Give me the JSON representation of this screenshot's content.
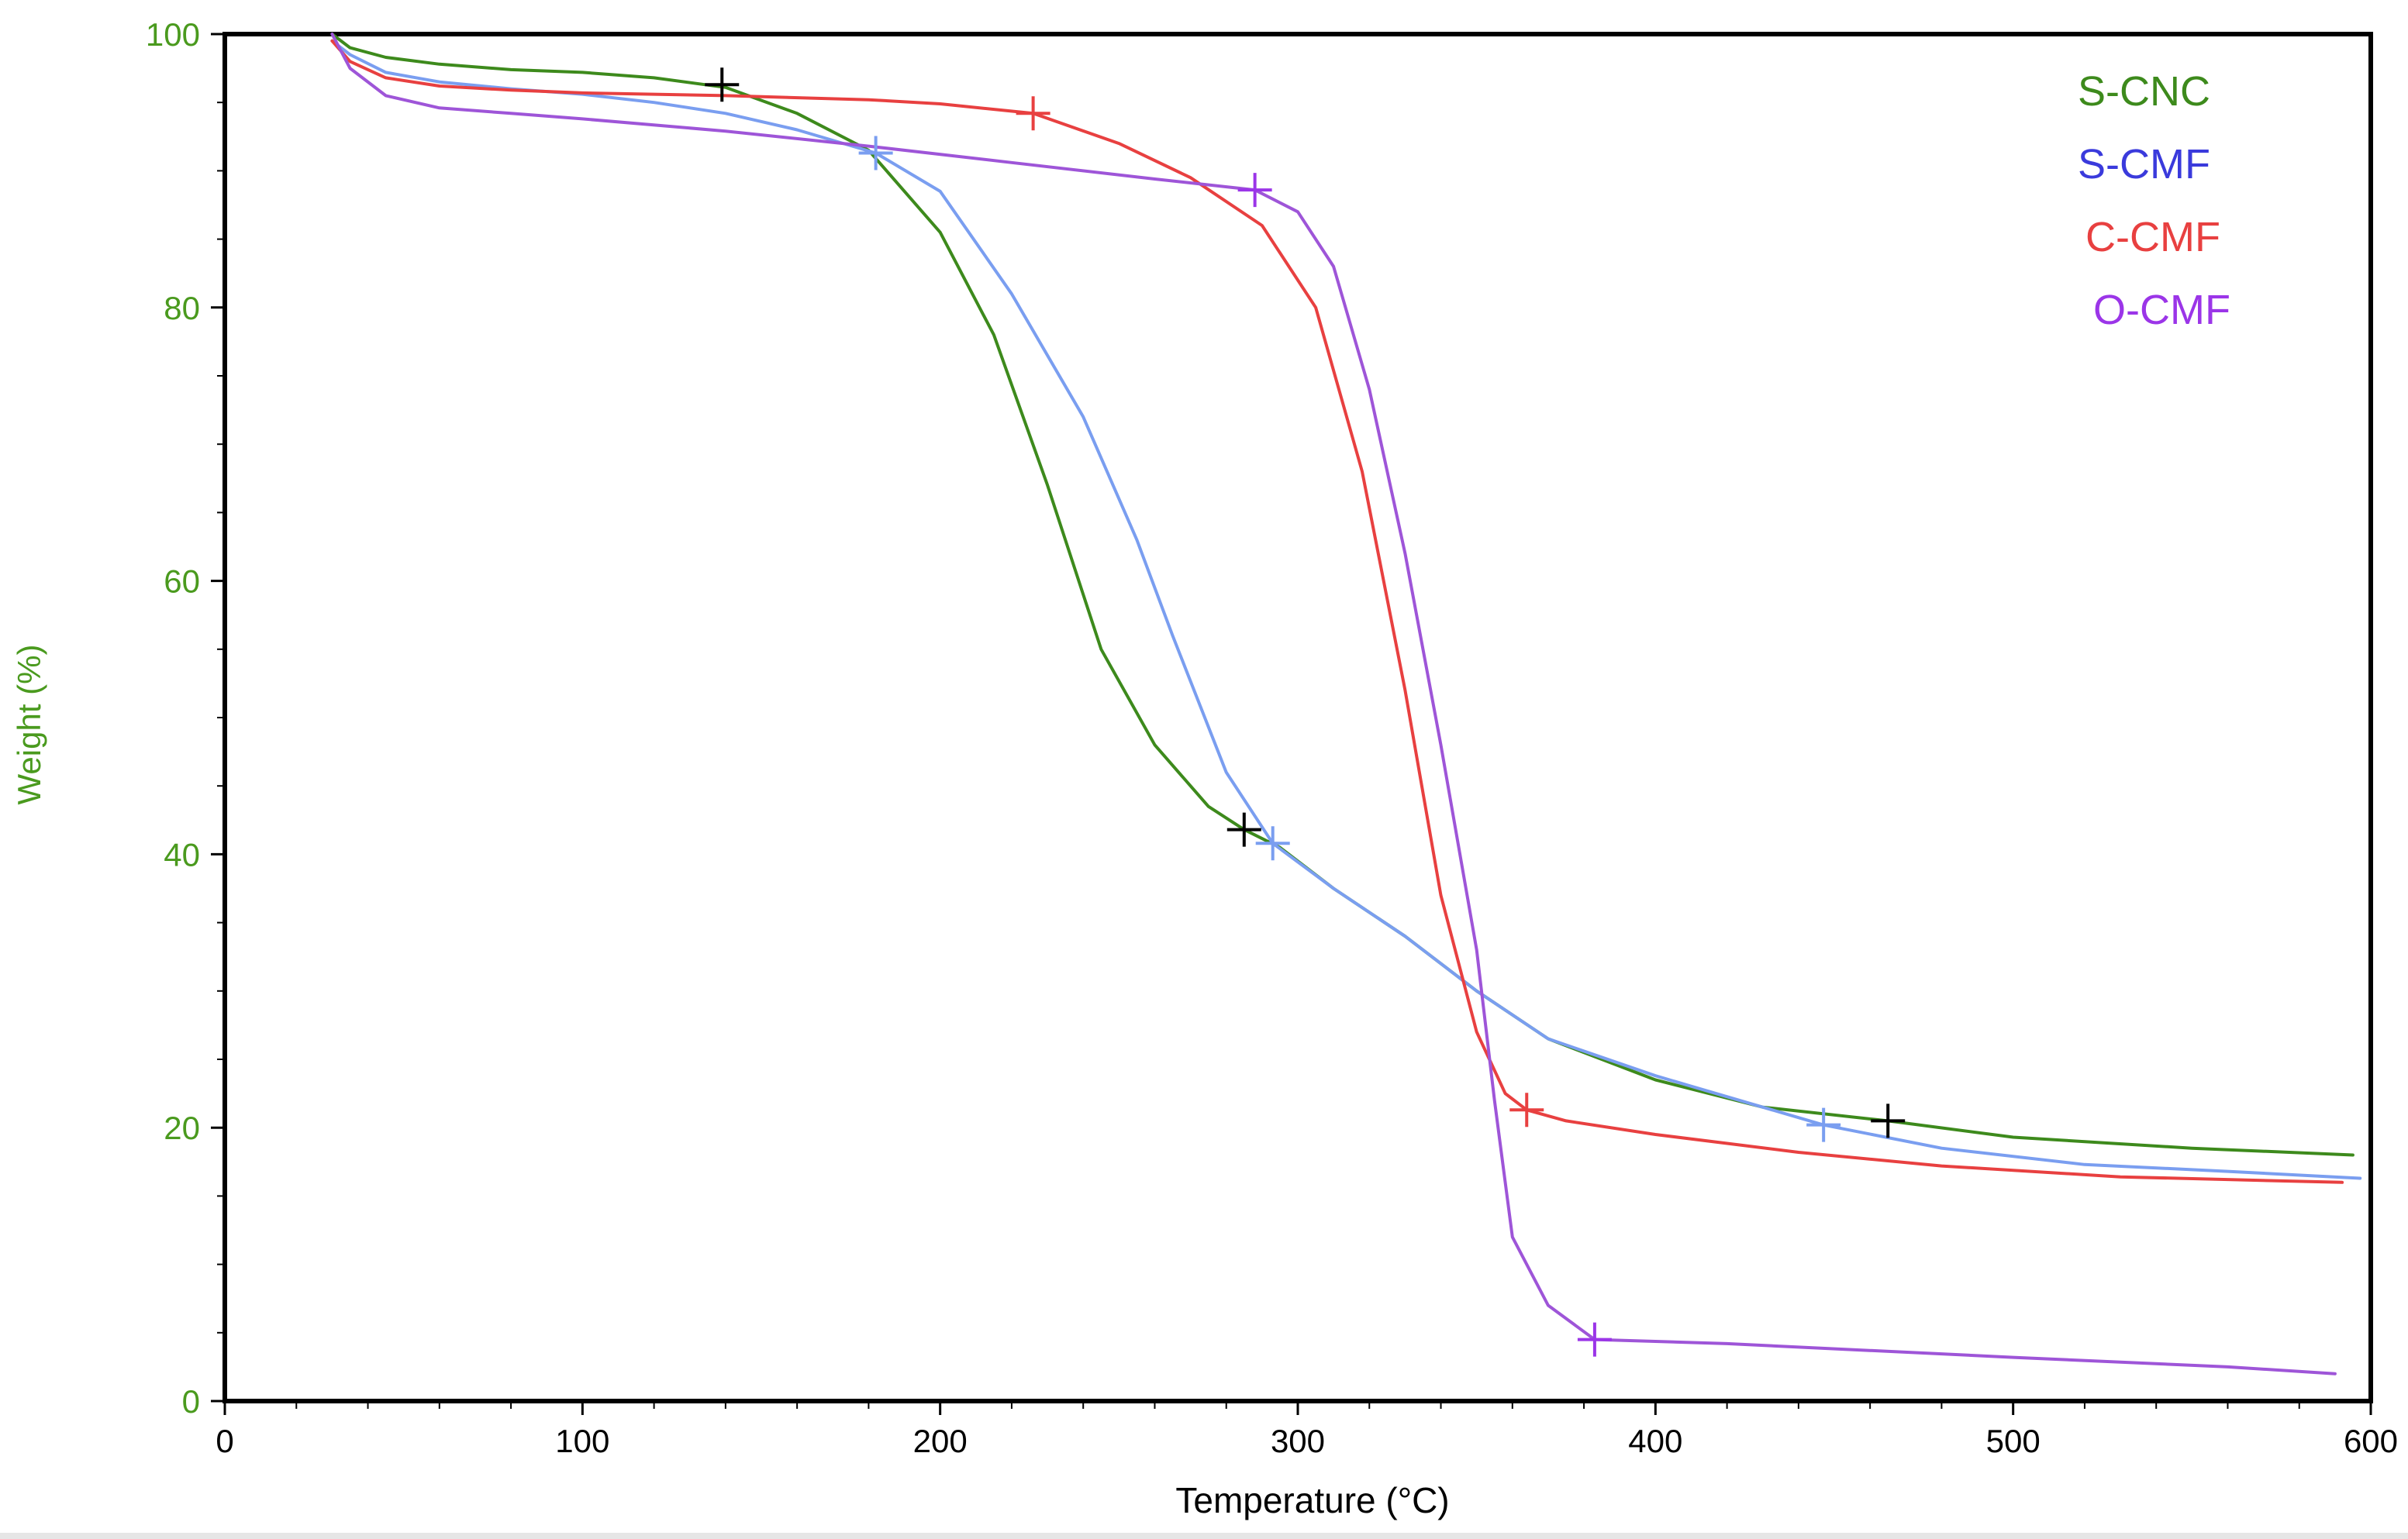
{
  "chart_data": {
    "type": "line",
    "title": "",
    "xlabel": "Temperature (°C)",
    "ylabel": "Weight (%)",
    "xlim": [
      0,
      600
    ],
    "ylim": [
      0,
      100
    ],
    "x_ticks": [
      0,
      100,
      200,
      300,
      400,
      500,
      600
    ],
    "x_tick_labels": [
      "0",
      "100",
      "200",
      "300",
      "400",
      "500",
      "600"
    ],
    "y_ticks": [
      0,
      20,
      40,
      60,
      80,
      100
    ],
    "y_tick_labels": [
      "0",
      "20",
      "40",
      "60",
      "80",
      "100"
    ],
    "grid": false,
    "legend_position": "top-right",
    "colors": {
      "axis": "#000000",
      "y_axis_text": "#4a9a1e",
      "x_axis_text": "#000000"
    },
    "series": [
      {
        "name": "S-CNC",
        "color": "#3d8a1c",
        "legend_color": "#3d8a1c",
        "marker_color": "#000000",
        "points": [
          [
            30,
            100
          ],
          [
            35,
            99
          ],
          [
            45,
            98.3
          ],
          [
            60,
            97.8
          ],
          [
            80,
            97.4
          ],
          [
            100,
            97.2
          ],
          [
            120,
            96.8
          ],
          [
            140,
            96.1
          ],
          [
            160,
            94.2
          ],
          [
            180,
            91.5
          ],
          [
            200,
            85.5
          ],
          [
            215,
            78
          ],
          [
            230,
            67
          ],
          [
            245,
            55
          ],
          [
            260,
            48
          ],
          [
            275,
            43.5
          ],
          [
            285,
            41.8
          ],
          [
            295,
            40.5
          ],
          [
            310,
            37.5
          ],
          [
            330,
            34
          ],
          [
            350,
            30
          ],
          [
            370,
            26.5
          ],
          [
            400,
            23.5
          ],
          [
            430,
            21.5
          ],
          [
            465,
            20.5
          ],
          [
            500,
            19.3
          ],
          [
            550,
            18.5
          ],
          [
            595,
            18
          ]
        ],
        "markers": [
          [
            139,
            96.3
          ],
          [
            285,
            41.8
          ],
          [
            465,
            20.5
          ]
        ]
      },
      {
        "name": "S-CMF",
        "color": "#7a9ef0",
        "legend_color": "#3a3adc",
        "marker_color": "#7a9ef0",
        "points": [
          [
            30,
            99.5
          ],
          [
            35,
            98.5
          ],
          [
            45,
            97.2
          ],
          [
            60,
            96.5
          ],
          [
            80,
            96
          ],
          [
            100,
            95.6
          ],
          [
            120,
            95
          ],
          [
            140,
            94.2
          ],
          [
            160,
            93
          ],
          [
            182,
            91.3
          ],
          [
            200,
            88.5
          ],
          [
            220,
            81
          ],
          [
            240,
            72
          ],
          [
            255,
            63
          ],
          [
            265,
            56
          ],
          [
            280,
            46
          ],
          [
            293,
            40.8
          ],
          [
            310,
            37.5
          ],
          [
            330,
            34
          ],
          [
            350,
            30
          ],
          [
            370,
            26.5
          ],
          [
            400,
            23.8
          ],
          [
            447,
            20.2
          ],
          [
            480,
            18.5
          ],
          [
            520,
            17.3
          ],
          [
            560,
            16.8
          ],
          [
            597,
            16.3
          ]
        ],
        "markers": [
          [
            182,
            91.3
          ],
          [
            293,
            40.8
          ],
          [
            447,
            20.2
          ]
        ]
      },
      {
        "name": "C-CMF",
        "color": "#e84040",
        "legend_color": "#e84040",
        "marker_color": "#e84040",
        "points": [
          [
            30,
            99.5
          ],
          [
            35,
            98
          ],
          [
            45,
            96.8
          ],
          [
            60,
            96.2
          ],
          [
            80,
            95.9
          ],
          [
            100,
            95.7
          ],
          [
            140,
            95.5
          ],
          [
            180,
            95.2
          ],
          [
            200,
            94.9
          ],
          [
            226,
            94.2
          ],
          [
            250,
            92
          ],
          [
            270,
            89.5
          ],
          [
            290,
            86
          ],
          [
            305,
            80
          ],
          [
            318,
            68
          ],
          [
            330,
            52
          ],
          [
            340,
            37
          ],
          [
            350,
            27
          ],
          [
            358,
            22.5
          ],
          [
            364,
            21.3
          ],
          [
            375,
            20.5
          ],
          [
            400,
            19.5
          ],
          [
            440,
            18.2
          ],
          [
            480,
            17.2
          ],
          [
            530,
            16.4
          ],
          [
            592,
            16
          ]
        ],
        "markers": [
          [
            226,
            94.2
          ],
          [
            364,
            21.3
          ]
        ]
      },
      {
        "name": "O-CMF",
        "color": "#9e55d8",
        "legend_color": "#9b35e8",
        "marker_color": "#9b35e8",
        "points": [
          [
            30,
            100
          ],
          [
            35,
            97.5
          ],
          [
            45,
            95.5
          ],
          [
            60,
            94.6
          ],
          [
            80,
            94.2
          ],
          [
            100,
            93.8
          ],
          [
            140,
            92.9
          ],
          [
            180,
            91.8
          ],
          [
            220,
            90.6
          ],
          [
            260,
            89.4
          ],
          [
            288,
            88.6
          ],
          [
            300,
            87
          ],
          [
            310,
            83
          ],
          [
            320,
            74
          ],
          [
            330,
            62
          ],
          [
            340,
            48
          ],
          [
            350,
            33
          ],
          [
            355,
            22
          ],
          [
            360,
            12
          ],
          [
            370,
            7
          ],
          [
            383,
            4.5
          ],
          [
            420,
            4.2
          ],
          [
            500,
            3.2
          ],
          [
            560,
            2.5
          ],
          [
            590,
            2
          ]
        ],
        "markers": [
          [
            288,
            88.6
          ],
          [
            383,
            4.5
          ]
        ]
      }
    ]
  }
}
